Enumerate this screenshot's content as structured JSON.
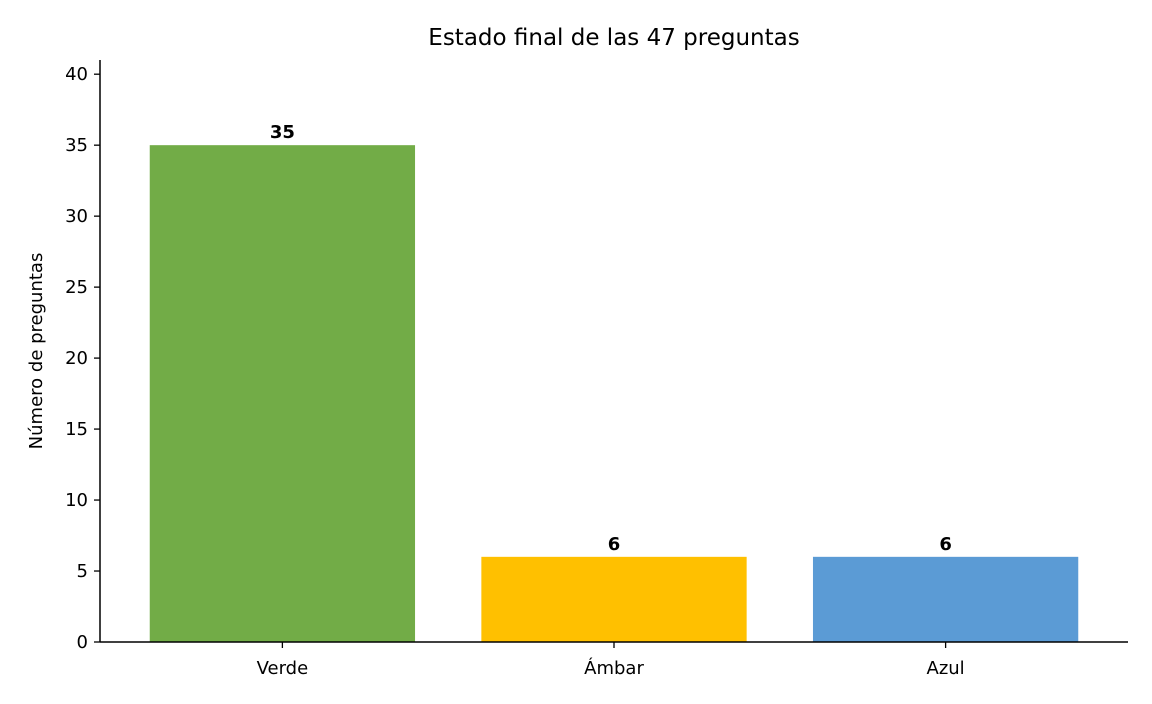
{
  "chart_data": {
    "type": "bar",
    "title": "Estado final de las 47 preguntas",
    "xlabel": "",
    "ylabel": "Número de preguntas",
    "categories": [
      "Verde",
      "Ámbar",
      "Azul"
    ],
    "values": [
      35,
      6,
      6
    ],
    "data_labels": [
      "35",
      "6",
      "6"
    ],
    "colors": [
      "#72ac47",
      "#ffc000",
      "#5b9bd5"
    ],
    "ylim": [
      0,
      41
    ],
    "yticks": [
      0,
      5,
      10,
      15,
      20,
      25,
      30,
      35,
      40
    ],
    "grid": false,
    "legend": "none"
  }
}
